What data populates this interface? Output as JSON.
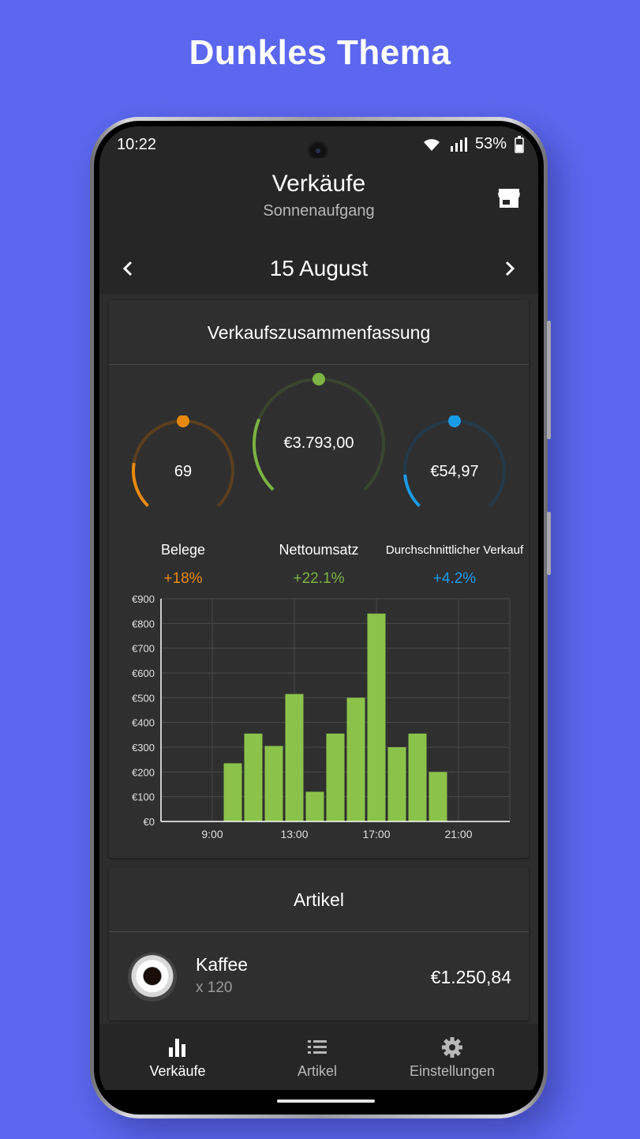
{
  "headline": "Dunkles Thema",
  "status": {
    "time": "10:22",
    "battery": "53%"
  },
  "header": {
    "title": "Verkäufe",
    "subtitle": "Sonnenaufgang",
    "date": "15 August"
  },
  "summary": {
    "title": "Verkaufszusammenfassung",
    "gauges": [
      {
        "value": "69",
        "label": "Belege",
        "delta": "+18%",
        "color": "#e8890c",
        "track": "#5a3f1e",
        "level": 0.2
      },
      {
        "value": "€3.793,00",
        "label": "Nettoumsatz",
        "delta": "+22.1%",
        "color": "#7cb342",
        "track": "#3a4530",
        "level": 0.25
      },
      {
        "value": "€54,97",
        "label": "Durchschnittlicher Verkauf",
        "delta": "+4.2%",
        "color": "#1a9be6",
        "track": "#243a4a",
        "level": 0.15
      }
    ]
  },
  "chart_data": {
    "type": "bar",
    "categories": [
      "7:00",
      "8:00",
      "9:00",
      "10:00",
      "11:00",
      "12:00",
      "13:00",
      "14:00",
      "15:00",
      "16:00",
      "17:00",
      "18:00",
      "19:00",
      "20:00",
      "21:00",
      "22:00",
      "23:00"
    ],
    "values": [
      0,
      0,
      0,
      235,
      355,
      305,
      515,
      120,
      355,
      500,
      840,
      300,
      355,
      200,
      0,
      0,
      0
    ],
    "x_tick_labels": [
      "9:00",
      "13:00",
      "17:00",
      "21:00"
    ],
    "y_tick_labels": [
      "€0",
      "€100",
      "€200",
      "€300",
      "€400",
      "€500",
      "€600",
      "€700",
      "€800",
      "€900"
    ],
    "ylim": [
      0,
      900
    ],
    "bar_color": "#8bc34a",
    "grid": true
  },
  "articles": {
    "title": "Artikel",
    "items": [
      {
        "name": "Kaffee",
        "qty": "x 120",
        "price": "€1.250,84"
      }
    ]
  },
  "nav": [
    {
      "label": "Verkäufe",
      "icon": "bar-chart-icon",
      "active": true
    },
    {
      "label": "Artikel",
      "icon": "list-icon",
      "active": false
    },
    {
      "label": "Einstellungen",
      "icon": "gear-icon",
      "active": false
    }
  ]
}
